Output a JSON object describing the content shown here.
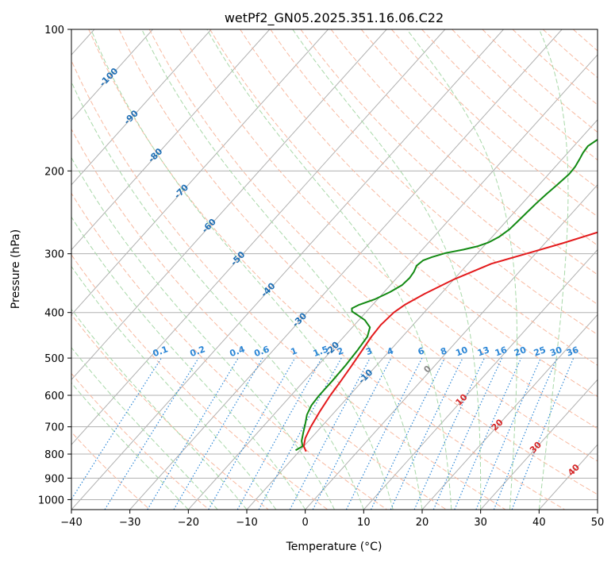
{
  "chart_data": {
    "type": "line",
    "title": "wetPf2_GN05.2025.351.16.06.C22",
    "xlabel": "Temperature (°C)",
    "ylabel": "Pressure (hPa)",
    "xlim": [
      -40,
      50
    ],
    "ylim": [
      1050,
      100
    ],
    "x_ticks": [
      "−40",
      "−30",
      "−20",
      "−10",
      "0",
      "10",
      "20",
      "30",
      "40",
      "50"
    ],
    "x_tick_values": [
      -40,
      -30,
      -20,
      -10,
      0,
      10,
      20,
      30,
      40,
      50
    ],
    "y_ticks": [
      "100",
      "200",
      "300",
      "400",
      "500",
      "600",
      "700",
      "800",
      "900",
      "1000"
    ],
    "y_tick_values": [
      100,
      200,
      300,
      400,
      500,
      600,
      700,
      800,
      900,
      1000
    ],
    "series": [
      {
        "name": "temperature",
        "color": "#e31a1c",
        "points": [
          [
            -8.8,
            790
          ],
          [
            -10,
            770
          ],
          [
            -11,
            740
          ],
          [
            -11.8,
            700
          ],
          [
            -12.6,
            650
          ],
          [
            -13.3,
            600
          ],
          [
            -13.7,
            560
          ],
          [
            -14.2,
            520
          ],
          [
            -14.8,
            480
          ],
          [
            -15.3,
            450
          ],
          [
            -15.5,
            425
          ],
          [
            -15.2,
            400
          ],
          [
            -14.5,
            385
          ],
          [
            -12.8,
            365
          ],
          [
            -10,
            340
          ],
          [
            -6,
            315
          ],
          [
            -1.6,
            300
          ],
          [
            3,
            285
          ],
          [
            8,
            268
          ],
          [
            12,
            250
          ],
          [
            15,
            232
          ],
          [
            18,
            215
          ],
          [
            21,
            202
          ],
          [
            24,
            190
          ],
          [
            26.5,
            180
          ],
          [
            29,
            166
          ],
          [
            32,
            152
          ],
          [
            35.5,
            140
          ],
          [
            39,
            130
          ],
          [
            42.5,
            118
          ],
          [
            45.5,
            110
          ],
          [
            49,
            100.5
          ]
        ]
      },
      {
        "name": "dewpoint",
        "color": "#138a13",
        "points": [
          [
            -10.8,
            785
          ],
          [
            -10.2,
            770
          ],
          [
            -11.2,
            750
          ],
          [
            -12.2,
            720
          ],
          [
            -13.2,
            690
          ],
          [
            -14.3,
            660
          ],
          [
            -15,
            630
          ],
          [
            -15.2,
            600
          ],
          [
            -15.2,
            560
          ],
          [
            -15.3,
            520
          ],
          [
            -15.6,
            480
          ],
          [
            -16,
            450
          ],
          [
            -17,
            430
          ],
          [
            -19,
            415
          ],
          [
            -21,
            405
          ],
          [
            -22.5,
            398
          ],
          [
            -23,
            392
          ],
          [
            -22.3,
            385
          ],
          [
            -20.5,
            375
          ],
          [
            -19,
            362
          ],
          [
            -18,
            350
          ],
          [
            -17.8,
            338
          ],
          [
            -18,
            328
          ],
          [
            -18.5,
            318
          ],
          [
            -18.2,
            310
          ],
          [
            -17.2,
            305
          ],
          [
            -15.5,
            299
          ],
          [
            -13,
            294
          ],
          [
            -11,
            289
          ],
          [
            -9.8,
            284
          ],
          [
            -8.8,
            276
          ],
          [
            -8.2,
            266
          ],
          [
            -8,
            255
          ],
          [
            -7.8,
            244
          ],
          [
            -7.6,
            234
          ],
          [
            -7.3,
            224
          ],
          [
            -6.9,
            214
          ],
          [
            -6.5,
            203
          ],
          [
            -6.6,
            196
          ],
          [
            -7,
            189
          ],
          [
            -7.4,
            183
          ],
          [
            -7.6,
            177
          ],
          [
            -7,
            172
          ],
          [
            -6,
            167
          ],
          [
            -5,
            162
          ],
          [
            -4,
            156
          ],
          [
            -3,
            150
          ],
          [
            -2,
            143
          ],
          [
            -1.2,
            137
          ],
          [
            -0.2,
            130
          ],
          [
            1,
            122
          ],
          [
            2.3,
            115
          ],
          [
            3.3,
            109
          ],
          [
            4.5,
            103
          ],
          [
            5.2,
            100
          ]
        ]
      }
    ],
    "dry_adiabat_labels": [
      "-100",
      "-90",
      "-80",
      "-70",
      "-60",
      "-50",
      "-40",
      "-30",
      "-20",
      "-10"
    ],
    "mixing_ratio_labels": [
      "0.1",
      "0.2",
      "0.4",
      "0.6",
      "1",
      "1.5",
      "2",
      "3",
      "4",
      "6",
      "8",
      "10",
      "13",
      "16",
      "20",
      "25",
      "30",
      "36"
    ],
    "moist_adiabat_labels": [
      "0",
      "10",
      "20",
      "30",
      "40"
    ]
  },
  "colors": {
    "isotherm": "#b0b0b0",
    "isobar": "#b0b0b0",
    "dry_adiabat": "#f8b9a0",
    "moist_adiabat": "#a8d8a8",
    "mixing_ratio": "#2b86d6",
    "dry_label": "#1f6fb5",
    "mixing_label": "#2b86d6",
    "moist_label": "#d62728",
    "zero_label": "#888888"
  }
}
